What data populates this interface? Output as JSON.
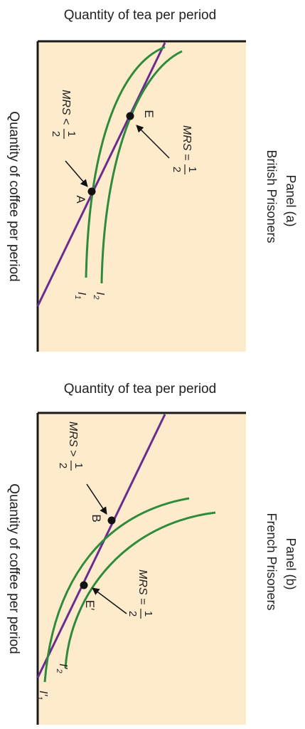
{
  "colors": {
    "plot_bg": "#fdebcc",
    "curve": "#2e8b3c",
    "budget_line": "#6a2c91",
    "axis": "#1a1a1a",
    "point": "#111111"
  },
  "panels": [
    {
      "panel_label": "Panel (a)",
      "panel_subtitle": "British Prisoners",
      "x_axis_label": "Quantity of coffee per period",
      "y_axis_label": "Quantity of tea per period",
      "points": [
        {
          "label": "E",
          "annotation_prefix": "MRS",
          "annotation_op": "=",
          "fraction_num": "1",
          "fraction_den": "2"
        },
        {
          "label": "A",
          "annotation_prefix": "MRS",
          "annotation_op": "<",
          "fraction_num": "1",
          "fraction_den": "2"
        }
      ],
      "curves": [
        {
          "letter": "I",
          "subscript": "1"
        },
        {
          "letter": "I",
          "subscript": "2"
        }
      ]
    },
    {
      "panel_label": "Panel (b)",
      "panel_subtitle": "French Prisoners",
      "x_axis_label": "Quantity of coffee per period",
      "y_axis_label": "Quantity of tea per period",
      "points": [
        {
          "label": "E′",
          "annotation_prefix": "MRS",
          "annotation_op": "=",
          "fraction_num": "1",
          "fraction_den": "2"
        },
        {
          "label": "B",
          "annotation_prefix": "MRS",
          "annotation_op": ">",
          "fraction_num": "1",
          "fraction_den": "2"
        }
      ],
      "curves": [
        {
          "letter": "I′",
          "subscript": "1"
        },
        {
          "letter": "I′",
          "subscript": "2"
        }
      ]
    }
  ]
}
